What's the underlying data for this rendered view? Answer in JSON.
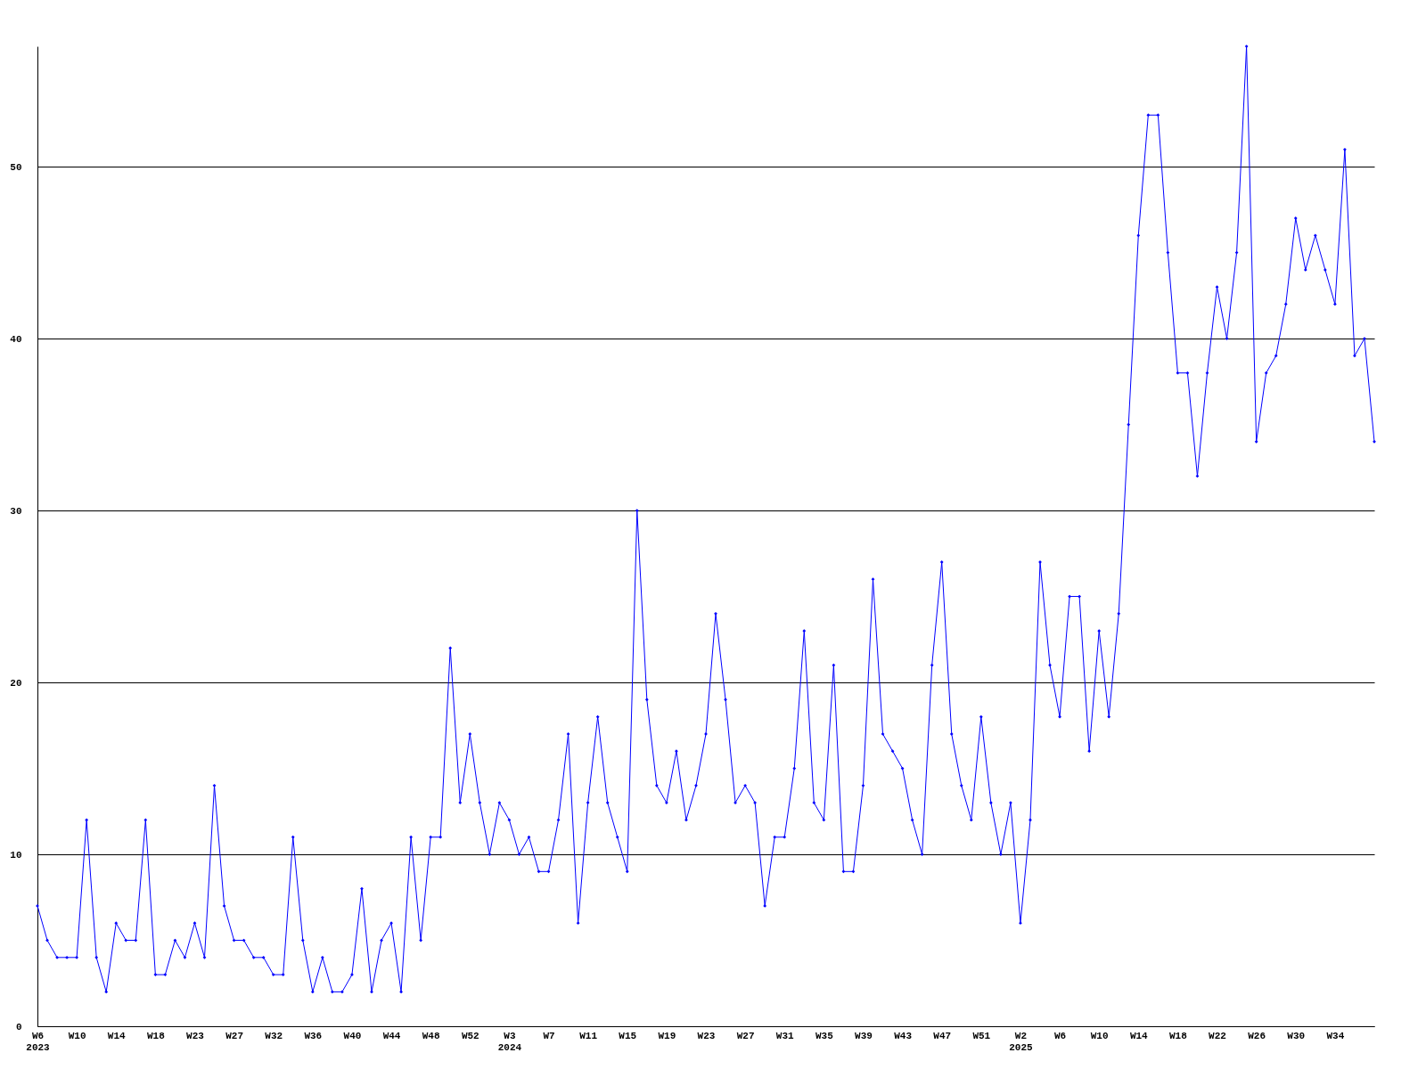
{
  "chart_data": {
    "type": "line",
    "categories": [
      "W6\n2023",
      null,
      null,
      null,
      "W10",
      null,
      null,
      null,
      "W14",
      null,
      null,
      null,
      "W18",
      null,
      null,
      null,
      "W23",
      null,
      null,
      null,
      "W27",
      null,
      null,
      null,
      "W32",
      null,
      null,
      null,
      "W36",
      null,
      null,
      null,
      "W40",
      null,
      null,
      null,
      "W44",
      null,
      null,
      null,
      "W48",
      null,
      null,
      null,
      "W52",
      null,
      null,
      null,
      "W3\n2024",
      null,
      null,
      null,
      "W7",
      null,
      null,
      null,
      "W11",
      null,
      null,
      null,
      "W15",
      null,
      null,
      null,
      "W19",
      null,
      null,
      null,
      "W23",
      null,
      null,
      null,
      "W27",
      null,
      null,
      null,
      "W31",
      null,
      null,
      null,
      "W35",
      null,
      null,
      null,
      "W39",
      null,
      null,
      null,
      "W43",
      null,
      null,
      null,
      "W47",
      null,
      null,
      null,
      "W51",
      null,
      null,
      null,
      "W2\n2025",
      null,
      null,
      null,
      "W6",
      null,
      null,
      null,
      "W10",
      null,
      null,
      null,
      "W14",
      null,
      null,
      null,
      "W18",
      null,
      null,
      null,
      "W22",
      null,
      null,
      null,
      "W26",
      null,
      null,
      null,
      "W30",
      null,
      null,
      null,
      "W34",
      null,
      null,
      null,
      null
    ],
    "series": [
      {
        "color": "#0000ff",
        "values": [
          7,
          5,
          4,
          4,
          4,
          12,
          4,
          2,
          6,
          5,
          5,
          12,
          3,
          3,
          5,
          4,
          6,
          4,
          14,
          7,
          5,
          5,
          4,
          4,
          3,
          3,
          11,
          5,
          2,
          4,
          2,
          2,
          3,
          8,
          2,
          5,
          6,
          2,
          11,
          5,
          11,
          11,
          22,
          13,
          17,
          13,
          10,
          13,
          12,
          10,
          11,
          9,
          9,
          12,
          17,
          6,
          13,
          18,
          13,
          11,
          9,
          30,
          19,
          14,
          13,
          16,
          12,
          14,
          17,
          24,
          19,
          13,
          14,
          13,
          7,
          11,
          11,
          15,
          23,
          13,
          12,
          21,
          9,
          9,
          14,
          26,
          17,
          16,
          15,
          12,
          10,
          21,
          27,
          17,
          14,
          12,
          18,
          13,
          10,
          13,
          6,
          12,
          27,
          21,
          18,
          25,
          25,
          16,
          23,
          18,
          24,
          35,
          46,
          53,
          53,
          45,
          38,
          38,
          32,
          38,
          43,
          40,
          45,
          57,
          34,
          38,
          39,
          42,
          47,
          44,
          46,
          44,
          42,
          51,
          39,
          40,
          34
        ]
      }
    ],
    "ylim": [
      0,
      57
    ],
    "yticks": [
      0,
      10,
      20,
      30,
      40,
      50
    ],
    "grid": "y",
    "marker": "diamond",
    "line_style": "solid"
  }
}
